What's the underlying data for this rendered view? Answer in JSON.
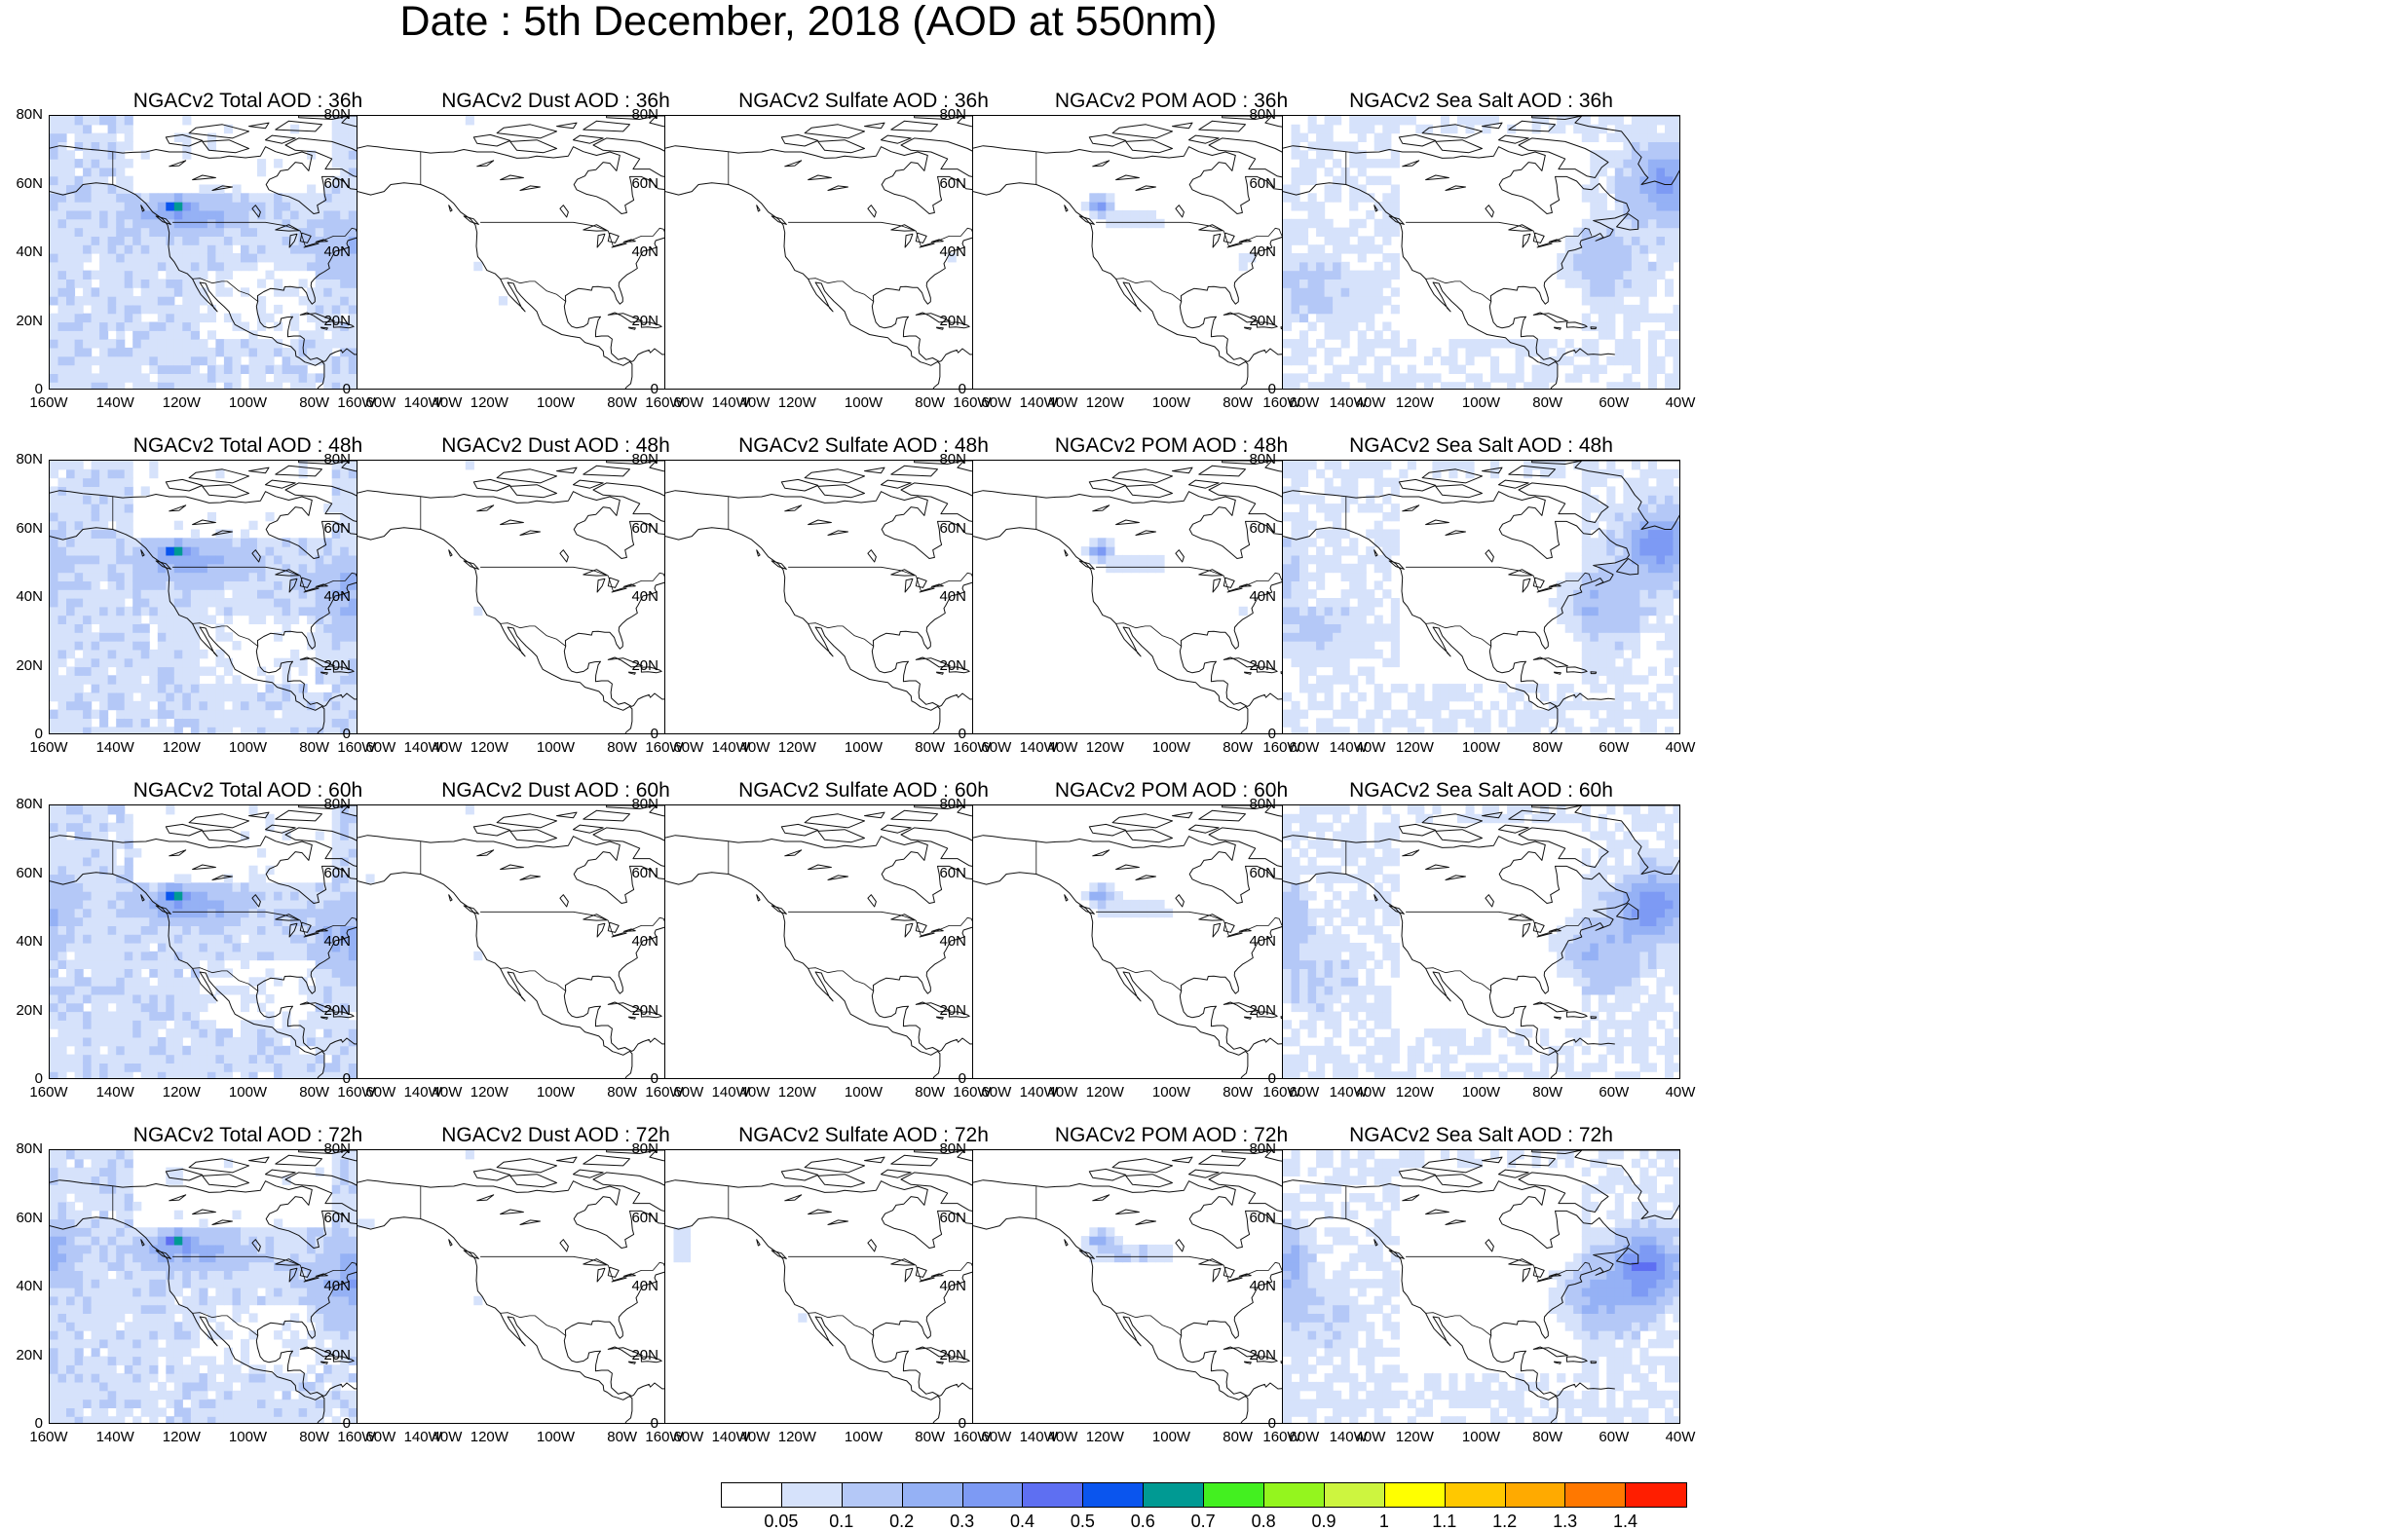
{
  "title": "Date : 5th December, 2018 (AOD at 550nm)",
  "y_ticks": [
    "80N",
    "60N",
    "40N",
    "20N",
    "0"
  ],
  "x_ticks": [
    "160W",
    "140W",
    "120W",
    "100W",
    "80W",
    "60W",
    "40W"
  ],
  "panels": [
    [
      {
        "title": "NGACv2 Total AOD : 36h",
        "species": "total",
        "lead_h": 36
      },
      {
        "title": "NGACv2 Dust AOD : 36h",
        "species": "dust",
        "lead_h": 36
      },
      {
        "title": "NGACv2 Sulfate AOD : 36h",
        "species": "sulfate",
        "lead_h": 36
      },
      {
        "title": "NGACv2 POM AOD : 36h",
        "species": "pom",
        "lead_h": 36
      },
      {
        "title": "NGACv2 Sea Salt AOD : 36h",
        "species": "seasalt",
        "lead_h": 36
      }
    ],
    [
      {
        "title": "NGACv2 Total AOD : 48h",
        "species": "total",
        "lead_h": 48
      },
      {
        "title": "NGACv2 Dust AOD : 48h",
        "species": "dust",
        "lead_h": 48
      },
      {
        "title": "NGACv2 Sulfate AOD : 48h",
        "species": "sulfate",
        "lead_h": 48
      },
      {
        "title": "NGACv2 POM AOD : 48h",
        "species": "pom",
        "lead_h": 48
      },
      {
        "title": "NGACv2 Sea Salt AOD : 48h",
        "species": "seasalt",
        "lead_h": 48
      }
    ],
    [
      {
        "title": "NGACv2 Total AOD : 60h",
        "species": "total",
        "lead_h": 60
      },
      {
        "title": "NGACv2 Dust AOD : 60h",
        "species": "dust",
        "lead_h": 60
      },
      {
        "title": "NGACv2 Sulfate AOD : 60h",
        "species": "sulfate",
        "lead_h": 60
      },
      {
        "title": "NGACv2 POM AOD : 60h",
        "species": "pom",
        "lead_h": 60
      },
      {
        "title": "NGACv2 Sea Salt AOD : 60h",
        "species": "seasalt",
        "lead_h": 60
      }
    ],
    [
      {
        "title": "NGACv2 Total AOD : 72h",
        "species": "total",
        "lead_h": 72
      },
      {
        "title": "NGACv2 Dust AOD : 72h",
        "species": "dust",
        "lead_h": 72
      },
      {
        "title": "NGACv2 Sulfate AOD : 72h",
        "species": "sulfate",
        "lead_h": 72
      },
      {
        "title": "NGACv2 POM AOD : 72h",
        "species": "pom",
        "lead_h": 72
      },
      {
        "title": "NGACv2 Sea Salt  AOD : 72h",
        "species": "seasalt",
        "lead_h": 72
      }
    ]
  ],
  "colorbar": {
    "colors": [
      "#ffffff",
      "#d6e2fb",
      "#b4c8f7",
      "#95b1f5",
      "#7d9af4",
      "#5e6ff2",
      "#0a55ee",
      "#009a93",
      "#43f020",
      "#94f51e",
      "#cdf53f",
      "#ffff00",
      "#ffc800",
      "#ffaa00",
      "#ff7800",
      "#ff1e00"
    ],
    "labels": [
      "0.05",
      "0.1",
      "0.2",
      "0.3",
      "0.4",
      "0.5",
      "0.6",
      "0.7",
      "0.8",
      "0.9",
      "1",
      "1.1",
      "1.2",
      "1.3",
      "1.4"
    ]
  }
}
